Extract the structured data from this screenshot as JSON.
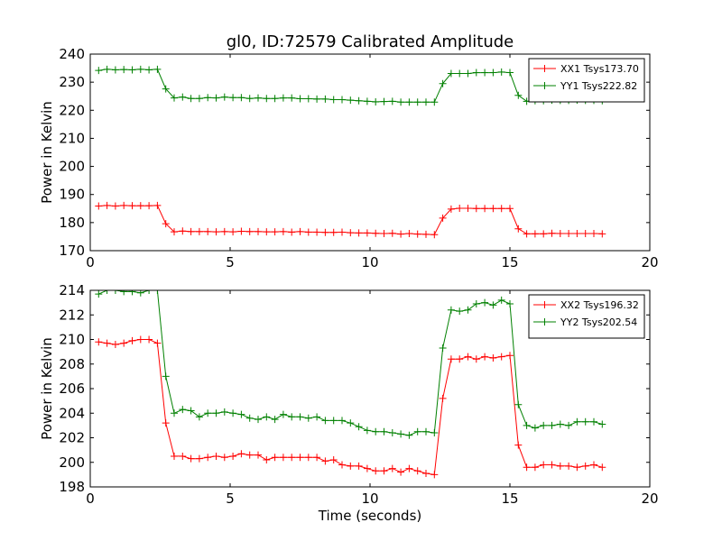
{
  "title": "gl0, ID:72579 Calibrated Amplitude",
  "colors": {
    "red": "#ff0000",
    "green": "#008000",
    "axes": "#000000"
  },
  "chart_data": [
    {
      "type": "line",
      "ylabel": "Power in Kelvin",
      "xlabel": "",
      "xlim": [
        0,
        20
      ],
      "ylim": [
        170,
        240
      ],
      "xticks": [
        0,
        5,
        10,
        15,
        20
      ],
      "yticks": [
        170,
        180,
        190,
        200,
        210,
        220,
        230,
        240
      ],
      "grid": false,
      "legend_position": "top-right",
      "x": [
        0.3,
        0.6,
        0.9,
        1.2,
        1.5,
        1.8,
        2.1,
        2.4,
        2.7,
        3.0,
        3.3,
        3.6,
        3.9,
        4.2,
        4.5,
        4.8,
        5.1,
        5.4,
        5.7,
        6.0,
        6.3,
        6.6,
        6.9,
        7.2,
        7.5,
        7.8,
        8.1,
        8.4,
        8.7,
        9.0,
        9.3,
        9.6,
        9.9,
        10.2,
        10.5,
        10.8,
        11.1,
        11.4,
        11.7,
        12.0,
        12.3,
        12.6,
        12.9,
        13.2,
        13.5,
        13.8,
        14.1,
        14.4,
        14.7,
        15.0,
        15.3,
        15.6,
        15.9,
        16.2,
        16.5,
        16.8,
        17.1,
        17.4,
        17.7,
        18.0,
        18.3
      ],
      "series": [
        {
          "name": "XX1 Tsys173.70",
          "color": "#ff0000",
          "values": [
            185.9,
            186.1,
            185.9,
            186.1,
            186.0,
            186.0,
            186.0,
            186.1,
            179.6,
            176.7,
            177.0,
            176.8,
            176.8,
            176.8,
            176.7,
            176.8,
            176.7,
            176.9,
            176.8,
            176.8,
            176.7,
            176.7,
            176.8,
            176.6,
            176.8,
            176.6,
            176.6,
            176.5,
            176.5,
            176.6,
            176.4,
            176.3,
            176.3,
            176.2,
            176.1,
            176.2,
            175.9,
            176.1,
            175.9,
            175.8,
            175.7,
            181.6,
            184.8,
            185.1,
            185.1,
            185.0,
            185.0,
            185.0,
            185.0,
            185.0,
            177.8,
            176.0,
            176.0,
            176.0,
            176.2,
            176.1,
            176.1,
            176.1,
            176.1,
            176.1,
            176.0
          ]
        },
        {
          "name": "YY1 Tsys222.82",
          "color": "#008000",
          "values": [
            234.2,
            234.6,
            234.4,
            234.5,
            234.4,
            234.6,
            234.4,
            234.6,
            227.6,
            224.4,
            224.7,
            224.2,
            224.2,
            224.5,
            224.4,
            224.7,
            224.5,
            224.5,
            224.2,
            224.4,
            224.2,
            224.2,
            224.4,
            224.4,
            224.1,
            224.1,
            224.0,
            224.0,
            223.8,
            223.8,
            223.6,
            223.4,
            223.2,
            223.0,
            223.1,
            223.2,
            222.9,
            222.9,
            222.9,
            222.9,
            222.9,
            229.5,
            233.1,
            233.1,
            233.1,
            233.4,
            233.4,
            233.4,
            233.6,
            233.4,
            225.3,
            223.2,
            223.4,
            223.4,
            223.6,
            223.5,
            223.5,
            223.6,
            223.5,
            223.5,
            223.4
          ]
        }
      ]
    },
    {
      "type": "line",
      "ylabel": "Power in Kelvin",
      "xlabel": "Time (seconds)",
      "xlim": [
        0,
        20
      ],
      "ylim": [
        198,
        214
      ],
      "xticks": [
        0,
        5,
        10,
        15,
        20
      ],
      "yticks": [
        198,
        200,
        202,
        204,
        206,
        208,
        210,
        212,
        214
      ],
      "grid": false,
      "legend_position": "top-right",
      "x": [
        0.3,
        0.6,
        0.9,
        1.2,
        1.5,
        1.8,
        2.1,
        2.4,
        2.7,
        3.0,
        3.3,
        3.6,
        3.9,
        4.2,
        4.5,
        4.8,
        5.1,
        5.4,
        5.7,
        6.0,
        6.3,
        6.6,
        6.9,
        7.2,
        7.5,
        7.8,
        8.1,
        8.4,
        8.7,
        9.0,
        9.3,
        9.6,
        9.9,
        10.2,
        10.5,
        10.8,
        11.1,
        11.4,
        11.7,
        12.0,
        12.3,
        12.6,
        12.9,
        13.2,
        13.5,
        13.8,
        14.1,
        14.4,
        14.7,
        15.0,
        15.3,
        15.6,
        15.9,
        16.2,
        16.5,
        16.8,
        17.1,
        17.4,
        17.7,
        18.0,
        18.3
      ],
      "series": [
        {
          "name": "XX2 Tsys196.32",
          "color": "#ff0000",
          "values": [
            209.8,
            209.7,
            209.6,
            209.7,
            209.9,
            210.0,
            210.0,
            209.7,
            203.2,
            200.5,
            200.5,
            200.3,
            200.3,
            200.4,
            200.5,
            200.4,
            200.5,
            200.7,
            200.6,
            200.6,
            200.2,
            200.4,
            200.4,
            200.4,
            200.4,
            200.4,
            200.4,
            200.1,
            200.2,
            199.8,
            199.7,
            199.7,
            199.5,
            199.3,
            199.3,
            199.5,
            199.2,
            199.5,
            199.3,
            199.1,
            199.0,
            205.2,
            208.4,
            208.4,
            208.6,
            208.4,
            208.6,
            208.5,
            208.6,
            208.7,
            201.4,
            199.6,
            199.6,
            199.8,
            199.8,
            199.7,
            199.7,
            199.6,
            199.7,
            199.8,
            199.6
          ]
        },
        {
          "name": "YY2 Tsys202.54",
          "color": "#008000",
          "values": [
            213.7,
            214.0,
            214.0,
            213.9,
            213.9,
            213.8,
            214.0,
            214.0,
            207.0,
            204.0,
            204.3,
            204.2,
            203.7,
            204.0,
            204.0,
            204.1,
            204.0,
            203.9,
            203.6,
            203.5,
            203.7,
            203.5,
            203.9,
            203.7,
            203.7,
            203.6,
            203.7,
            203.4,
            203.4,
            203.4,
            203.2,
            202.9,
            202.6,
            202.5,
            202.5,
            202.4,
            202.3,
            202.2,
            202.5,
            202.5,
            202.4,
            209.3,
            212.4,
            212.3,
            212.4,
            212.9,
            213.0,
            212.8,
            213.2,
            212.9,
            204.7,
            203.0,
            202.8,
            203.0,
            203.0,
            203.1,
            203.0,
            203.3,
            203.3,
            203.3,
            203.1
          ]
        }
      ]
    }
  ]
}
